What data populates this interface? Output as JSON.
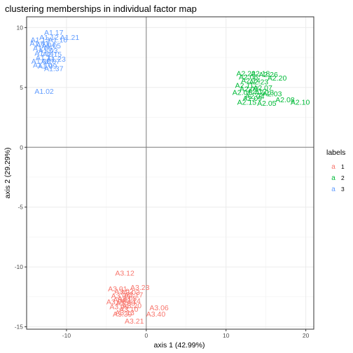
{
  "chart_data": {
    "type": "scatter",
    "title": "clustering memberships in individual factor map",
    "xlabel": "axis 1 (42.99%)",
    "ylabel": "axis 2 (29.29%)",
    "xlim": [
      -15,
      21
    ],
    "ylim": [
      -15.2,
      10.9
    ],
    "x_ticks": [
      -10,
      0,
      10,
      20
    ],
    "y_ticks": [
      -15,
      -10,
      -5,
      0,
      5,
      10
    ],
    "grid": true,
    "reference_lines": {
      "x": 0,
      "y": 0
    },
    "legend": {
      "title": "labels",
      "placement": "right",
      "key_glyph": "a",
      "entries": [
        {
          "name": "1",
          "color": "#F8766D"
        },
        {
          "name": "2",
          "color": "#00BA38"
        },
        {
          "name": "3",
          "color": "#619CFF"
        }
      ]
    },
    "series": [
      {
        "name": "1",
        "color": "#F8766D",
        "points": [
          {
            "label": "A3.12",
            "x": -2.7,
            "y": -10.5
          },
          {
            "label": "A3.23",
            "x": -0.8,
            "y": -11.7
          },
          {
            "label": "A3.06",
            "x": 1.6,
            "y": -13.4
          },
          {
            "label": "A3.40",
            "x": 1.2,
            "y": -13.9
          },
          {
            "label": "A3.21",
            "x": -1.5,
            "y": -14.5
          },
          {
            "label": "A3.20",
            "x": -1.8,
            "y": -13.2
          },
          {
            "label": "A3.39",
            "x": -3.0,
            "y": -13.9
          },
          {
            "label": "A3.17",
            "x": -1.6,
            "y": -12.3
          },
          {
            "label": "A3.01",
            "x": -3.6,
            "y": -11.8
          },
          {
            "label": "A3.02",
            "x": -2.8,
            "y": -12.0
          },
          {
            "label": "A3.03",
            "x": -2.0,
            "y": -12.1
          },
          {
            "label": "A3.04",
            "x": -3.2,
            "y": -12.4
          },
          {
            "label": "A3.05",
            "x": -2.4,
            "y": -12.6
          },
          {
            "label": "A3.07",
            "x": -3.8,
            "y": -12.9
          },
          {
            "label": "A3.08",
            "x": -2.6,
            "y": -13.0
          },
          {
            "label": "A3.09",
            "x": -3.4,
            "y": -13.3
          },
          {
            "label": "A3.10",
            "x": -2.2,
            "y": -13.5
          },
          {
            "label": "A3.11",
            "x": -3.0,
            "y": -12.7
          },
          {
            "label": "A3.13",
            "x": -2.7,
            "y": -13.8
          },
          {
            "label": "A3.14",
            "x": -1.9,
            "y": -12.8
          }
        ]
      },
      {
        "name": "2",
        "color": "#00BA38",
        "points": [
          {
            "label": "A2.22",
            "x": 12.5,
            "y": 6.2
          },
          {
            "label": "A2.18",
            "x": 14.3,
            "y": 6.2
          },
          {
            "label": "A2.26",
            "x": 15.3,
            "y": 6.1
          },
          {
            "label": "A2.20",
            "x": 16.4,
            "y": 5.8
          },
          {
            "label": "A2.23",
            "x": 14.1,
            "y": 5.5
          },
          {
            "label": "A2.03",
            "x": 15.8,
            "y": 4.5
          },
          {
            "label": "A2.08",
            "x": 17.4,
            "y": 4.0
          },
          {
            "label": "A2.10",
            "x": 19.3,
            "y": 3.8
          },
          {
            "label": "A2.05",
            "x": 15.1,
            "y": 3.7
          },
          {
            "label": "A2.15",
            "x": 12.6,
            "y": 3.8
          },
          {
            "label": "A2.01",
            "x": 12.0,
            "y": 4.6
          },
          {
            "label": "A2.02",
            "x": 12.9,
            "y": 4.9
          },
          {
            "label": "A2.04",
            "x": 13.6,
            "y": 4.3
          },
          {
            "label": "A2.06",
            "x": 12.8,
            "y": 5.9
          },
          {
            "label": "A2.07",
            "x": 14.6,
            "y": 5.0
          },
          {
            "label": "A2.09",
            "x": 13.3,
            "y": 4.1
          },
          {
            "label": "A2.11",
            "x": 12.3,
            "y": 5.2
          },
          {
            "label": "A2.12",
            "x": 13.9,
            "y": 4.7
          },
          {
            "label": "A2.13",
            "x": 14.8,
            "y": 4.6
          },
          {
            "label": "A2.14",
            "x": 13.1,
            "y": 5.6
          }
        ]
      },
      {
        "name": "3",
        "color": "#619CFF",
        "points": [
          {
            "label": "A1.17",
            "x": -11.6,
            "y": 9.6
          },
          {
            "label": "A1.21",
            "x": -9.6,
            "y": 9.2
          },
          {
            "label": "A1.16",
            "x": -11.1,
            "y": 9.0
          },
          {
            "label": "A1.23",
            "x": -11.3,
            "y": 7.4
          },
          {
            "label": "A1.37",
            "x": -11.6,
            "y": 6.6
          },
          {
            "label": "A1.03",
            "x": -12.3,
            "y": 8.1
          },
          {
            "label": "A1.02",
            "x": -12.8,
            "y": 4.7
          },
          {
            "label": "A1.01",
            "x": -13.4,
            "y": 8.7
          },
          {
            "label": "A1.04",
            "x": -12.6,
            "y": 8.6
          },
          {
            "label": "A1.05",
            "x": -11.9,
            "y": 8.5
          },
          {
            "label": "A1.06",
            "x": -13.0,
            "y": 8.3
          },
          {
            "label": "A1.07",
            "x": -12.0,
            "y": 7.2
          },
          {
            "label": "A1.08",
            "x": -13.2,
            "y": 7.2
          },
          {
            "label": "A1.09",
            "x": -12.4,
            "y": 6.8
          },
          {
            "label": "A1.10",
            "x": -13.0,
            "y": 6.9
          },
          {
            "label": "A1.11",
            "x": -12.7,
            "y": 7.5
          },
          {
            "label": "A1.12",
            "x": -12.2,
            "y": 9.2
          },
          {
            "label": "A1.13",
            "x": -13.3,
            "y": 9.0
          },
          {
            "label": "A1.14",
            "x": -12.8,
            "y": 7.9
          },
          {
            "label": "A1.15",
            "x": -11.8,
            "y": 7.8
          }
        ]
      }
    ]
  }
}
